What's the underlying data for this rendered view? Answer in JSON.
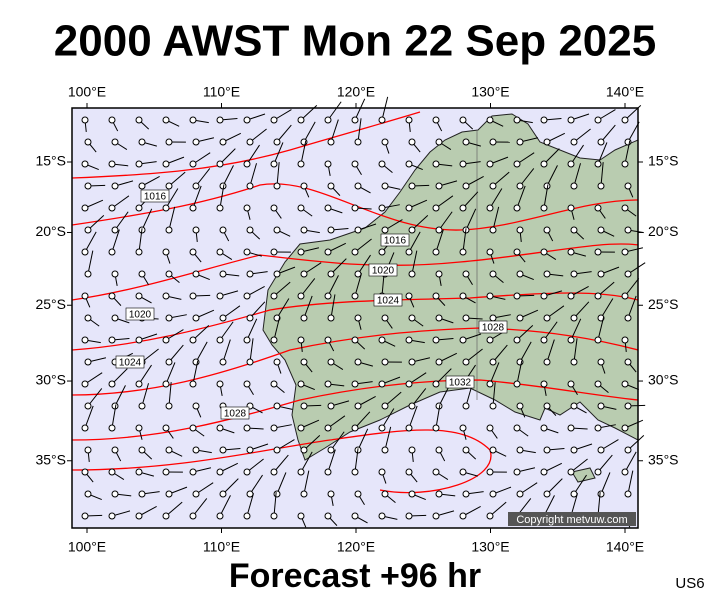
{
  "title": "2000 AWST Mon 22 Sep 2025",
  "footer": "Forecast +96 hr",
  "model": "US6",
  "copyright": "Copyright metvuw.com",
  "map": {
    "lonticks": [
      {
        "value": 100,
        "label": "100°E"
      },
      {
        "value": 110,
        "label": "110°E"
      },
      {
        "value": 120,
        "label": "120°E"
      },
      {
        "value": 130,
        "label": "130°E"
      },
      {
        "value": 140,
        "label": "140°E"
      }
    ],
    "latticks": [
      {
        "value": -15,
        "label": "15°S"
      },
      {
        "value": -20,
        "label": "20°S"
      },
      {
        "value": -25,
        "label": "25°S"
      },
      {
        "value": -30,
        "label": "30°S"
      },
      {
        "value": -35,
        "label": "35°S"
      }
    ],
    "isobar_labels": [
      1016,
      1016,
      1020,
      1020,
      1024,
      1024,
      1028,
      1028,
      1032
    ]
  }
}
